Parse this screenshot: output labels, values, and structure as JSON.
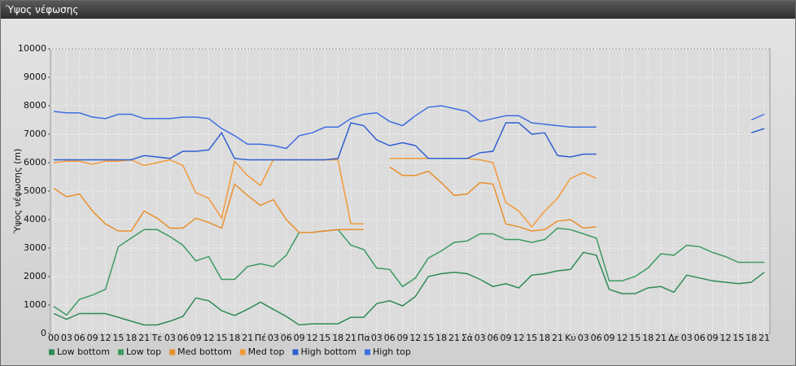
{
  "chart_data": {
    "type": "line",
    "title": "Ύψος νέφωσης",
    "ylabel": "Ύψος νέφωσης (m)",
    "categories": [
      "00",
      "03",
      "06",
      "09",
      "12",
      "15",
      "18",
      "21",
      "Τε",
      "03",
      "06",
      "09",
      "12",
      "15",
      "18",
      "21",
      "Πέ",
      "03",
      "06",
      "09",
      "12",
      "15",
      "18",
      "21",
      "Πα",
      "03",
      "06",
      "09",
      "12",
      "15",
      "18",
      "21",
      "Σά",
      "03",
      "06",
      "09",
      "12",
      "15",
      "18",
      "21",
      "Κυ",
      "03",
      "06",
      "09",
      "12",
      "15",
      "18",
      "21",
      "Δε",
      "03",
      "06",
      "09",
      "12",
      "15",
      "18",
      "21"
    ],
    "ylim": [
      0,
      10000
    ],
    "yticks": [
      0,
      1000,
      2000,
      3000,
      4000,
      5000,
      6000,
      7000,
      8000,
      9000,
      10000
    ],
    "grid": true,
    "legend": "bottom",
    "series": [
      {
        "name": "Low bottom",
        "color": "#2f8a55",
        "values": [
          700,
          500,
          700,
          700,
          700,
          570,
          430,
          300,
          300,
          430,
          600,
          1250,
          1150,
          800,
          630,
          850,
          1100,
          850,
          600,
          300,
          340,
          340,
          340,
          570,
          570,
          1050,
          1150,
          970,
          1300,
          2000,
          2100,
          2150,
          2100,
          1900,
          1650,
          1750,
          1600,
          2050,
          2100,
          2200,
          2250,
          2850,
          2750,
          1550,
          1400,
          1400,
          1600,
          1650,
          1450,
          2050,
          1950,
          1850,
          1800,
          1750,
          1800,
          2150
        ]
      },
      {
        "name": "Low top",
        "color": "#3c9a63",
        "values": [
          950,
          650,
          1200,
          1350,
          1550,
          3050,
          3350,
          3650,
          3650,
          3400,
          3100,
          2550,
          2700,
          1900,
          1900,
          2350,
          2450,
          2350,
          2750,
          3550,
          3550,
          3600,
          3650,
          3100,
          2950,
          2300,
          2250,
          1650,
          1950,
          2650,
          2900,
          3200,
          3250,
          3500,
          3500,
          3300,
          3300,
          3200,
          3300,
          3700,
          3650,
          3500,
          3350,
          1850,
          1850,
          2000,
          2300,
          2800,
          2750,
          3100,
          3050,
          2850,
          2700,
          2500,
          2500,
          2500
        ]
      },
      {
        "name": "Med bottom",
        "color": "#e8902c",
        "values": [
          5100,
          4800,
          4900,
          4300,
          3850,
          3600,
          3600,
          4300,
          4050,
          3700,
          3700,
          4050,
          3900,
          3700,
          5250,
          4850,
          4500,
          4700,
          4000,
          3550,
          3550,
          3600,
          3650,
          3650,
          3650,
          null,
          5850,
          5550,
          5550,
          5700,
          5300,
          4850,
          4900,
          5300,
          5250,
          3850,
          3750,
          3600,
          3650,
          3950,
          4000,
          3700,
          3750,
          null,
          null,
          null,
          null,
          null,
          null,
          null,
          null,
          null,
          null,
          null,
          null,
          null
        ]
      },
      {
        "name": "Med top",
        "color": "#f29a3a",
        "values": [
          6000,
          6050,
          6050,
          5950,
          6050,
          6050,
          6100,
          5900,
          6000,
          6100,
          5900,
          4950,
          4750,
          4050,
          6050,
          5550,
          5200,
          6100,
          6100,
          6100,
          6100,
          6100,
          6100,
          3850,
          3850,
          null,
          6150,
          6150,
          6150,
          6150,
          6150,
          6150,
          6150,
          6100,
          6000,
          4600,
          4300,
          3750,
          4300,
          4750,
          5450,
          5650,
          5450,
          null,
          null,
          null,
          null,
          null,
          null,
          null,
          null,
          null,
          null,
          null,
          null,
          null
        ]
      },
      {
        "name": "High bottom",
        "color": "#2f5fd0",
        "values": [
          6100,
          6100,
          6100,
          6100,
          6100,
          6100,
          6100,
          6250,
          6200,
          6150,
          6400,
          6400,
          6450,
          7050,
          6150,
          6100,
          6100,
          6100,
          6100,
          6100,
          6100,
          6100,
          6150,
          7400,
          7300,
          6800,
          6600,
          6700,
          6600,
          6150,
          6150,
          6150,
          6150,
          6350,
          6400,
          7400,
          7400,
          7000,
          7050,
          6250,
          6200,
          6300,
          6300,
          null,
          null,
          null,
          null,
          null,
          null,
          null,
          null,
          null,
          null,
          null,
          7050,
          7200
        ]
      },
      {
        "name": "High top",
        "color": "#3f6ee0",
        "values": [
          7800,
          7750,
          7750,
          7600,
          7550,
          7700,
          7700,
          7550,
          7550,
          7550,
          7600,
          7600,
          7550,
          7200,
          6950,
          6650,
          6650,
          6600,
          6500,
          6950,
          7050,
          7250,
          7250,
          7550,
          7700,
          7750,
          7450,
          7300,
          7650,
          7950,
          8000,
          7900,
          7800,
          7450,
          7550,
          7650,
          7650,
          7400,
          7350,
          7300,
          7250,
          7250,
          7250,
          null,
          null,
          null,
          null,
          null,
          null,
          null,
          null,
          null,
          null,
          null,
          7500,
          7700
        ]
      }
    ]
  }
}
